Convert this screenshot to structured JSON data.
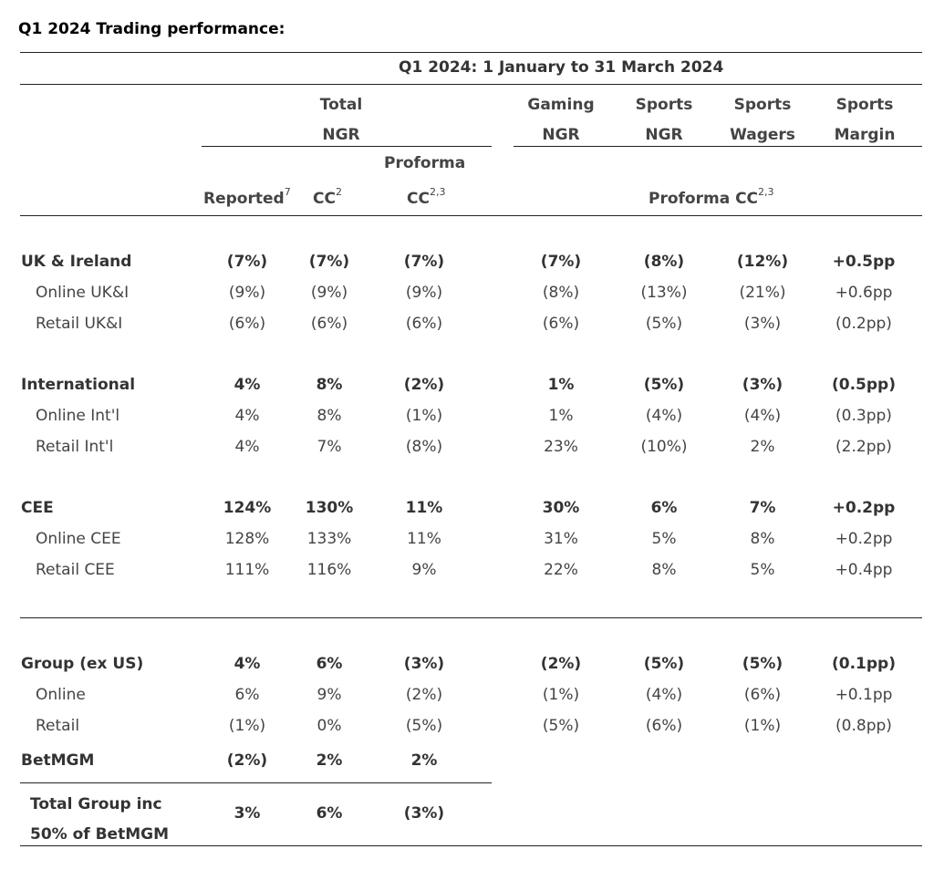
{
  "title": "Q1 2024 Trading performance:",
  "period_header": "Q1 2024: 1 January to 31 March 2024",
  "col_groups": {
    "total": [
      "Total",
      "NGR"
    ],
    "gaming": [
      "Gaming",
      "NGR"
    ],
    "sports_ngr": [
      "Sports",
      "NGR"
    ],
    "sports_wagers": [
      "Sports",
      "Wagers"
    ],
    "sports_margin": [
      "Sports",
      "Margin"
    ]
  },
  "subheaders": {
    "reported": "Reported",
    "reported_sup": "7",
    "cc": "CC",
    "cc_sup": "2",
    "proforma": "Proforma",
    "proforma_cc": "CC",
    "proforma_cc_sup": "2,3",
    "right_proforma": "Proforma CC",
    "right_proforma_sup": "2,3"
  },
  "rows": [
    {
      "label": "UK & Ireland",
      "bold": true,
      "values": [
        "(7%)",
        "(7%)",
        "(7%)",
        "(7%)",
        "(8%)",
        "(12%)",
        "+0.5pp"
      ]
    },
    {
      "label": "Online UK&I",
      "bold": false,
      "values": [
        "(9%)",
        "(9%)",
        "(9%)",
        "(8%)",
        "(13%)",
        "(21%)",
        "+0.6pp"
      ]
    },
    {
      "label": "Retail UK&I",
      "bold": false,
      "values": [
        "(6%)",
        "(6%)",
        "(6%)",
        "(6%)",
        "(5%)",
        "(3%)",
        "(0.2pp)"
      ]
    },
    {
      "label": "International",
      "bold": true,
      "values": [
        "4%",
        "8%",
        "(2%)",
        "1%",
        "(5%)",
        "(3%)",
        "(0.5pp)"
      ]
    },
    {
      "label": "Online Int'l",
      "bold": false,
      "values": [
        "4%",
        "8%",
        "(1%)",
        "1%",
        "(4%)",
        "(4%)",
        "(0.3pp)"
      ]
    },
    {
      "label": "Retail Int'l",
      "bold": false,
      "values": [
        "4%",
        "7%",
        "(8%)",
        "23%",
        "(10%)",
        "2%",
        "(2.2pp)"
      ]
    },
    {
      "label": "CEE",
      "bold": true,
      "values": [
        "124%",
        "130%",
        "11%",
        "30%",
        "6%",
        "7%",
        "+0.2pp"
      ]
    },
    {
      "label": "Online CEE",
      "bold": false,
      "values": [
        "128%",
        "133%",
        "11%",
        "31%",
        "5%",
        "8%",
        "+0.2pp"
      ]
    },
    {
      "label": "Retail CEE",
      "bold": false,
      "values": [
        "111%",
        "116%",
        "9%",
        "22%",
        "8%",
        "5%",
        "+0.4pp"
      ]
    },
    {
      "label": "Group (ex US)",
      "bold": true,
      "values": [
        "4%",
        "6%",
        "(3%)",
        "(2%)",
        "(5%)",
        "(5%)",
        "(0.1pp)"
      ]
    },
    {
      "label": "Online",
      "bold": false,
      "values": [
        "6%",
        "9%",
        "(2%)",
        "(1%)",
        "(4%)",
        "(6%)",
        "+0.1pp"
      ]
    },
    {
      "label": "Retail",
      "bold": false,
      "values": [
        "(1%)",
        "0%",
        "(5%)",
        "(5%)",
        "(6%)",
        "(1%)",
        "(0.8pp)"
      ]
    },
    {
      "label": "BetMGM",
      "bold": true,
      "values": [
        "(2%)",
        "2%",
        "2%"
      ]
    }
  ],
  "total_row": {
    "label_line1": "Total Group inc",
    "label_line2": "50% of BetMGM",
    "values": [
      "3%",
      "6%",
      "(3%)"
    ]
  }
}
